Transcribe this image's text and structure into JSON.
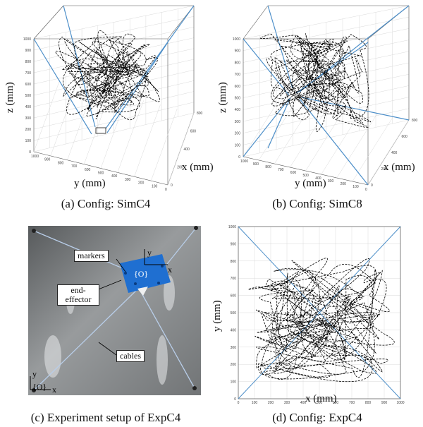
{
  "panel_a": {
    "caption": "(a) Config: SimC4",
    "xlabel": "x (mm)",
    "ylabel": "y (mm)",
    "zlabel": "z (mm)",
    "z_ticks": [
      "0",
      "100",
      "200",
      "300",
      "400",
      "500",
      "600",
      "700",
      "800",
      "900",
      "1000"
    ],
    "y_ticks": [
      "1000",
      "900",
      "800",
      "700",
      "600",
      "500",
      "400",
      "300",
      "200",
      "100",
      "0"
    ],
    "x_ticks": [
      "0",
      "200",
      "400",
      "600",
      "800"
    ]
  },
  "panel_b": {
    "caption": "(b) Config: SimC8",
    "xlabel": "x (mm)",
    "ylabel": "y (mm)",
    "zlabel": "z (mm)",
    "z_ticks": [
      "0",
      "100",
      "200",
      "300",
      "400",
      "500",
      "600",
      "700",
      "800",
      "900",
      "1000"
    ],
    "y_ticks": [
      "1000",
      "900",
      "800",
      "700",
      "600",
      "500",
      "400",
      "300",
      "200",
      "100",
      "0"
    ],
    "x_ticks": [
      "0",
      "200",
      "400",
      "600",
      "800"
    ]
  },
  "panel_c": {
    "caption": "(c) Experiment setup of ExpC4",
    "labels": {
      "markers": "markers",
      "end_effector": "end-\neffector",
      "cables": "cables",
      "frame_origin": "{O}",
      "frame_origin_local": "{O}",
      "x_axis": "x",
      "y_axis": "y",
      "x_axis_local": "x",
      "y_axis_local": "y"
    }
  },
  "panel_d": {
    "caption": "(d) Config: ExpC4",
    "xlabel": "x (mm)",
    "ylabel": "y (mm)",
    "x_ticks": [
      "0",
      "100",
      "200",
      "300",
      "400",
      "500",
      "600",
      "700",
      "800",
      "900",
      "1000"
    ],
    "y_ticks": [
      "0",
      "100",
      "200",
      "300",
      "400",
      "500",
      "600",
      "700",
      "800",
      "900",
      "1000"
    ]
  },
  "colors": {
    "cable": "#4d8fc9",
    "trajectory": "#000000",
    "grid": "#d9d9d9",
    "photo_bg": "#8c8f90",
    "effector": "#1f6fd1"
  }
}
